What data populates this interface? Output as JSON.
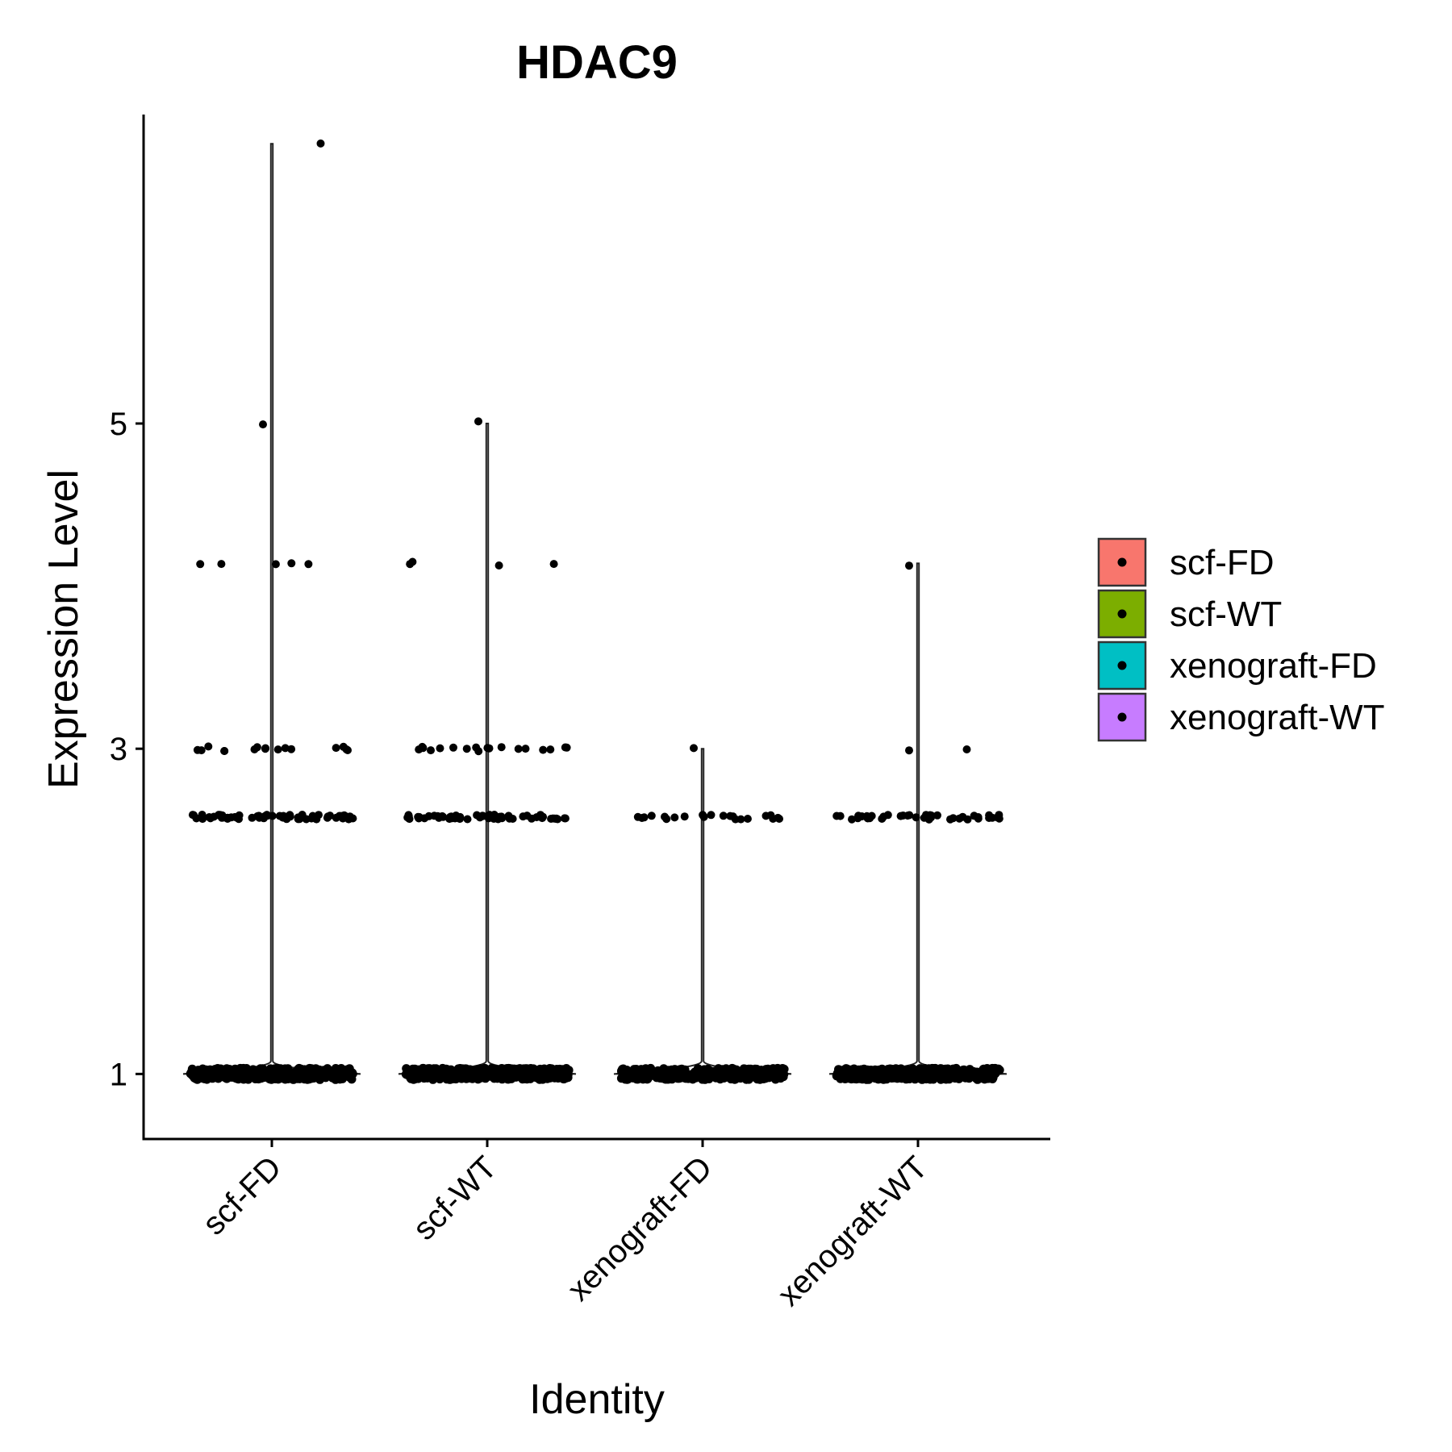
{
  "chart_data": {
    "type": "violin",
    "title": "HDAC9",
    "xlabel": "Identity",
    "ylabel": "Expression Level",
    "categories": [
      "scf-FD",
      "scf-WT",
      "xenograft-FD",
      "xenograft-WT"
    ],
    "y_ticks": [
      1,
      3,
      5
    ],
    "ylim": [
      0.6,
      6.9
    ],
    "grid": false,
    "legend": {
      "position": "right",
      "entries": [
        {
          "label": "scf-FD",
          "color": "#F8766D"
        },
        {
          "label": "scf-WT",
          "color": "#7CAE00"
        },
        {
          "label": "xenograft-FD",
          "color": "#00BFC4"
        },
        {
          "label": "xenograft-WT",
          "color": "#C77CFF"
        }
      ]
    },
    "series": [
      {
        "category": "scf-FD",
        "max": 6.72,
        "levels": [
          {
            "y": 1.0,
            "count": 400
          },
          {
            "y": 2.58,
            "count": 60
          },
          {
            "y": 3.0,
            "count": 16
          },
          {
            "y": 4.14,
            "count": 5
          },
          {
            "y": 5.0,
            "count": 1
          },
          {
            "y": 6.72,
            "count": 1
          }
        ]
      },
      {
        "category": "scf-WT",
        "max": 5.0,
        "levels": [
          {
            "y": 1.0,
            "count": 400
          },
          {
            "y": 2.58,
            "count": 60
          },
          {
            "y": 3.0,
            "count": 18
          },
          {
            "y": 4.14,
            "count": 4
          },
          {
            "y": 5.0,
            "count": 1
          }
        ]
      },
      {
        "category": "xenograft-FD",
        "max": 3.0,
        "levels": [
          {
            "y": 1.0,
            "count": 320
          },
          {
            "y": 2.58,
            "count": 22
          },
          {
            "y": 3.0,
            "count": 1
          }
        ]
      },
      {
        "category": "xenograft-WT",
        "max": 4.14,
        "levels": [
          {
            "y": 1.0,
            "count": 380
          },
          {
            "y": 2.58,
            "count": 40
          },
          {
            "y": 3.0,
            "count": 2
          },
          {
            "y": 4.14,
            "count": 1
          }
        ]
      }
    ]
  }
}
